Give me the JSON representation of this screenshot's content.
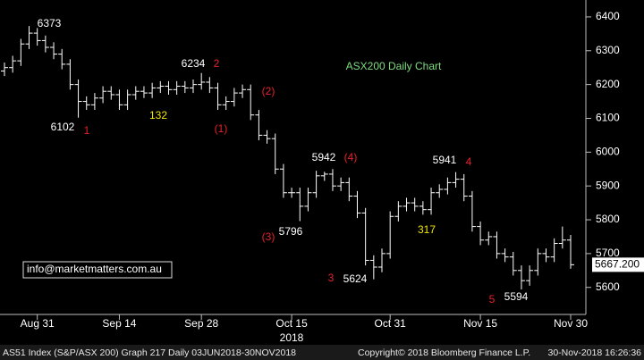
{
  "chart_data": {
    "type": "ohlc",
    "title": "ASX200 Daily Chart",
    "categories": [
      null,
      null,
      null,
      null,
      "Aug 31",
      null,
      null,
      null,
      null,
      null,
      null,
      null,
      null,
      null,
      "Sep 14",
      null,
      null,
      null,
      null,
      null,
      null,
      null,
      null,
      null,
      "Sep 28",
      null,
      null,
      null,
      null,
      null,
      null,
      null,
      null,
      null,
      null,
      "Oct 15",
      null,
      null,
      null,
      null,
      null,
      null,
      null,
      null,
      null,
      null,
      null,
      "Oct 31",
      null,
      null,
      null,
      null,
      null,
      null,
      null,
      null,
      null,
      null,
      "Nov 15",
      null,
      null,
      null,
      null,
      null,
      null,
      null,
      null,
      null,
      null,
      "Nov 30"
    ],
    "year_label": "2018",
    "open": [
      6240,
      6250,
      6270,
      6320,
      6352,
      6330,
      6310,
      6290,
      6260,
      6200,
      6150,
      6140,
      6160,
      6180,
      6170,
      6140,
      6170,
      6180,
      6175,
      6190,
      6195,
      6185,
      6195,
      6190,
      6200,
      6207,
      6190,
      6140,
      6150,
      6175,
      6185,
      6110,
      6050,
      6040,
      5950,
      5880,
      5880,
      5840,
      5880,
      5930,
      5935,
      5900,
      5910,
      5870,
      5820,
      5680,
      5660,
      5700,
      5810,
      5840,
      5850,
      5840,
      5830,
      5880,
      5890,
      5910,
      5920,
      5870,
      5780,
      5740,
      5750,
      5700,
      5690,
      5650,
      5620,
      5650,
      5700,
      5690,
      5730,
      5740
    ],
    "high": [
      6265,
      6285,
      6335,
      6373,
      6367,
      6345,
      6325,
      6305,
      6275,
      6215,
      6165,
      6175,
      6195,
      6195,
      6185,
      6185,
      6195,
      6195,
      6205,
      6210,
      6210,
      6210,
      6210,
      6215,
      6234,
      6222,
      6205,
      6165,
      6190,
      6200,
      6200,
      6125,
      6065,
      6055,
      5965,
      5895,
      5895,
      5895,
      5945,
      5942,
      5950,
      5925,
      5925,
      5885,
      5835,
      5695,
      5715,
      5825,
      5855,
      5865,
      5865,
      5855,
      5895,
      5905,
      5925,
      5941,
      5935,
      5885,
      5795,
      5765,
      5765,
      5715,
      5705,
      5665,
      5665,
      5715,
      5715,
      5745,
      5780,
      5755
    ],
    "low": [
      6225,
      6235,
      6255,
      6305,
      6315,
      6295,
      6275,
      6245,
      6185,
      6102,
      6125,
      6125,
      6145,
      6155,
      6125,
      6125,
      6155,
      6160,
      6160,
      6175,
      6170,
      6170,
      6175,
      6175,
      6185,
      6175,
      6125,
      6125,
      6135,
      6160,
      6095,
      6035,
      6025,
      5935,
      5865,
      5865,
      5796,
      5825,
      5865,
      5915,
      5885,
      5885,
      5855,
      5805,
      5665,
      5624,
      5645,
      5685,
      5795,
      5825,
      5825,
      5815,
      5815,
      5865,
      5875,
      5895,
      5855,
      5765,
      5725,
      5725,
      5685,
      5675,
      5635,
      5594,
      5605,
      5635,
      5675,
      5675,
      5715,
      5655
    ],
    "close": [
      6250,
      6270,
      6320,
      6352,
      6330,
      6310,
      6290,
      6260,
      6200,
      6150,
      6140,
      6160,
      6180,
      6170,
      6140,
      6170,
      6180,
      6175,
      6190,
      6195,
      6185,
      6195,
      6190,
      6200,
      6207,
      6190,
      6140,
      6150,
      6175,
      6185,
      6110,
      6050,
      6040,
      5950,
      5880,
      5880,
      5840,
      5880,
      5930,
      5935,
      5900,
      5910,
      5870,
      5820,
      5680,
      5660,
      5700,
      5810,
      5840,
      5850,
      5840,
      5830,
      5880,
      5890,
      5910,
      5920,
      5870,
      5780,
      5740,
      5750,
      5700,
      5690,
      5650,
      5620,
      5650,
      5700,
      5690,
      5730,
      5740,
      5667
    ],
    "color": "#ffffff",
    "ylim": [
      5520,
      6450
    ],
    "yticks": [
      5600,
      5700,
      5800,
      5900,
      6000,
      6100,
      6200,
      6300,
      6400
    ],
    "last_price_label": "5667.200",
    "annotations": [
      "6373",
      "6102",
      "1",
      "132",
      "6234",
      "2",
      "(2)",
      "(1)",
      "5942",
      "(4)",
      "(3)",
      "5796",
      "3",
      "5624",
      "5941",
      "4",
      "317",
      "5",
      "5594"
    ],
    "watermark": "info@marketmatters.com.au",
    "footer": {
      "left": "AS51 Index (S&P/ASX 200) Graph 217  Daily 03JUN2018-30NOV2018",
      "middle": "Copyright© 2018 Bloomberg Finance L.P.",
      "right": "30-Nov-2018 16:26:36"
    }
  }
}
